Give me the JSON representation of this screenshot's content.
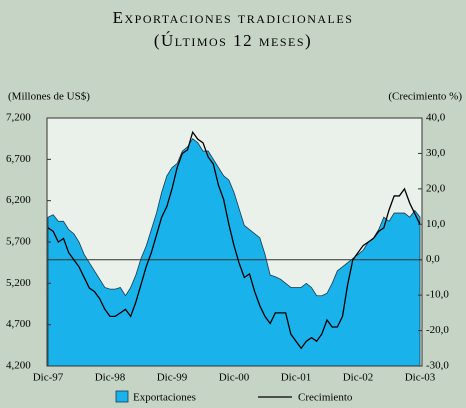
{
  "chart_data": {
    "type": "area_line",
    "title": "Exportaciones tradicionales",
    "subtitle": "(Últimos 12 meses)",
    "ylabel": "(Millones de US$)",
    "y2label": "(Crecimiento %)",
    "categories": [
      "Dic-97",
      null,
      null,
      null,
      null,
      null,
      null,
      null,
      null,
      null,
      null,
      null,
      "Dic-98",
      null,
      null,
      null,
      null,
      null,
      null,
      null,
      null,
      null,
      null,
      null,
      "Dic-99",
      null,
      null,
      null,
      null,
      null,
      null,
      null,
      null,
      null,
      null,
      null,
      "Dic-00",
      null,
      null,
      null,
      null,
      null,
      null,
      null,
      null,
      null,
      null,
      null,
      "Dic-01",
      null,
      null,
      null,
      null,
      null,
      null,
      null,
      null,
      null,
      null,
      null,
      "Dic-02",
      null,
      null,
      null,
      null,
      null,
      null,
      null,
      null,
      null,
      null,
      null,
      "Dic-03"
    ],
    "series": [
      {
        "name": "Exportaciones",
        "type": "area",
        "color": "#19b2ea",
        "values": [
          6000,
          6030,
          5950,
          5950,
          5850,
          5800,
          5700,
          5550,
          5450,
          5350,
          5250,
          5150,
          5130,
          5130,
          5150,
          5050,
          5150,
          5300,
          5500,
          5650,
          5850,
          6050,
          6300,
          6500,
          6600,
          6650,
          6800,
          6850,
          6950,
          6900,
          6800,
          6800,
          6700,
          6600,
          6500,
          6450,
          6300,
          6100,
          5900,
          5850,
          5800,
          5750,
          5550,
          5300,
          5280,
          5250,
          5200,
          5150,
          5150,
          5150,
          5200,
          5150,
          5050,
          5050,
          5080,
          5200,
          5350,
          5400,
          5450,
          5500,
          5550,
          5600,
          5700,
          5750,
          5850,
          6000,
          5950,
          6050,
          6050,
          6050,
          6000,
          6080,
          6000
        ]
      },
      {
        "name": "Crecimiento",
        "type": "line",
        "color": "#000000",
        "axis": "y2",
        "values": [
          9,
          8,
          5,
          6,
          2,
          0,
          -2,
          -5,
          -8,
          -9,
          -11,
          -14,
          -16,
          -16,
          -15,
          -14,
          -16,
          -12,
          -7,
          -2,
          2,
          7,
          12,
          15,
          20,
          26,
          30,
          31,
          36,
          34,
          33,
          29,
          27,
          21,
          17,
          10,
          4,
          -1,
          -5,
          -4,
          -9,
          -13,
          -16,
          -18,
          -15,
          -15,
          -15,
          -21,
          -23,
          -25,
          -23,
          -22,
          -23,
          -21,
          -17,
          -19,
          -19,
          -16,
          -7,
          0,
          2,
          4,
          5,
          6,
          8,
          9,
          14,
          18,
          18,
          20,
          16,
          13,
          10
        ]
      }
    ],
    "ylim": [
      4200,
      7200
    ],
    "yticks": [
      {
        "value": 4200,
        "label": "4,200"
      },
      {
        "value": 4700,
        "label": "4,700"
      },
      {
        "value": 5200,
        "label": "5,200"
      },
      {
        "value": 5700,
        "label": "5,700"
      },
      {
        "value": 6200,
        "label": "6,200"
      },
      {
        "value": 6700,
        "label": "6,700"
      },
      {
        "value": 7200,
        "label": "7,200"
      }
    ],
    "y2lim": [
      -30,
      40
    ],
    "y2ticks": [
      {
        "value": -30,
        "label": "-30,0"
      },
      {
        "value": -20,
        "label": "-20,0"
      },
      {
        "value": -10,
        "label": "-10,0"
      },
      {
        "value": 0,
        "label": "0,0"
      },
      {
        "value": 10,
        "label": "10,0"
      },
      {
        "value": 20,
        "label": "20,0"
      },
      {
        "value": 30,
        "label": "30,0"
      },
      {
        "value": 40,
        "label": "40,0"
      }
    ],
    "y2_reference_line": 0,
    "legend": "bottom"
  }
}
